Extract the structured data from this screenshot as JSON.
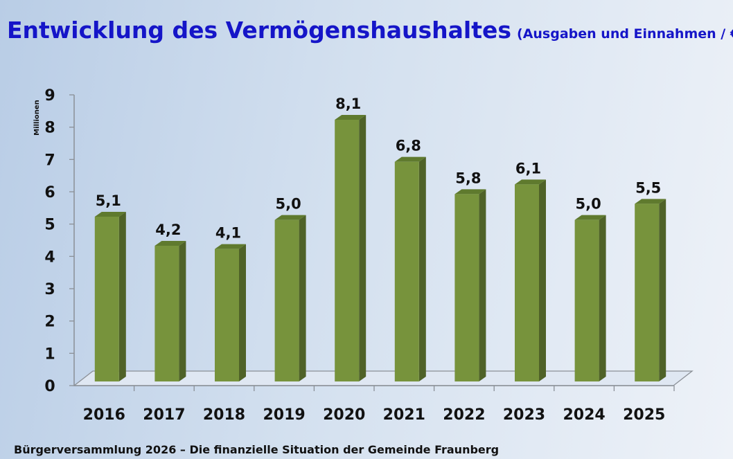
{
  "chart_data": {
    "type": "bar",
    "title": "Entwicklung des Vermögenshaushaltes",
    "subtitle": "(Ausgaben und Einnahmen / €)",
    "ylabel": "Millionen",
    "xlabel": "",
    "categories": [
      "2016",
      "2017",
      "2018",
      "2019",
      "2020",
      "2021",
      "2022",
      "2023",
      "2024",
      "2025"
    ],
    "values": [
      5.1,
      4.2,
      4.1,
      5.0,
      8.1,
      6.8,
      5.8,
      6.1,
      5.0,
      5.5
    ],
    "data_labels": [
      "5,1",
      "4,2",
      "4,1",
      "5,0",
      "8,1",
      "6,8",
      "5,8",
      "6,1",
      "5,0",
      "5,5"
    ],
    "yticks": [
      "0",
      "1",
      "2",
      "3",
      "4",
      "5",
      "6",
      "7",
      "8",
      "9"
    ],
    "ylim": [
      0,
      9
    ],
    "grid": false,
    "legend": "none",
    "style": "3d-column",
    "colors": {
      "front": "#77933c",
      "side": "#4f6228",
      "top": "#5f7a2e",
      "title": "#1515c8"
    }
  },
  "footer": "Bürgerversammlung 2026 – Die finanzielle Situation der Gemeinde Fraunberg"
}
